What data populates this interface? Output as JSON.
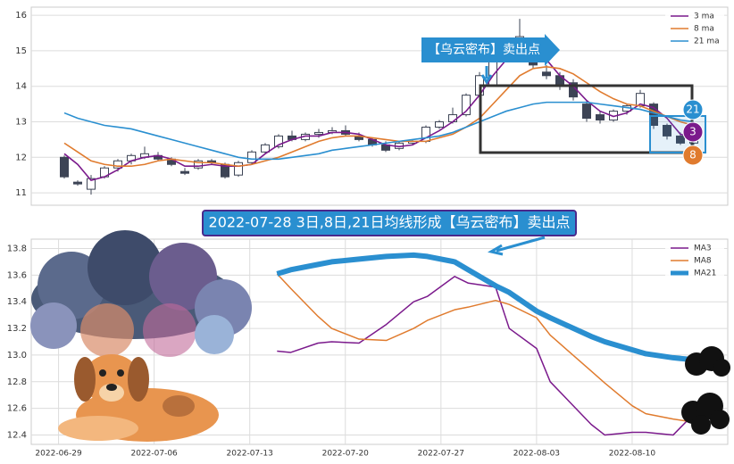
{
  "chart_data": [
    {
      "type": "candlestick",
      "ohlc": [
        [
          12.0,
          12.05,
          11.4,
          11.45
        ],
        [
          11.3,
          11.35,
          11.2,
          11.25
        ],
        [
          11.1,
          11.5,
          10.95,
          11.4
        ],
        [
          11.45,
          11.75,
          11.4,
          11.7
        ],
        [
          11.7,
          11.95,
          11.6,
          11.9
        ],
        [
          11.9,
          12.1,
          11.8,
          12.05
        ],
        [
          12.0,
          12.3,
          11.95,
          12.1
        ],
        [
          12.05,
          12.15,
          11.9,
          11.95
        ],
        [
          11.95,
          12.0,
          11.75,
          11.8
        ],
        [
          11.6,
          11.7,
          11.5,
          11.55
        ],
        [
          11.7,
          11.95,
          11.65,
          11.9
        ],
        [
          11.9,
          11.95,
          11.8,
          11.85
        ],
        [
          11.8,
          11.85,
          11.4,
          11.45
        ],
        [
          11.5,
          11.9,
          11.45,
          11.85
        ],
        [
          11.85,
          12.2,
          11.8,
          12.15
        ],
        [
          12.15,
          12.4,
          12.1,
          12.35
        ],
        [
          12.3,
          12.65,
          12.25,
          12.6
        ],
        [
          12.6,
          12.75,
          12.45,
          12.5
        ],
        [
          12.5,
          12.7,
          12.45,
          12.65
        ],
        [
          12.65,
          12.8,
          12.55,
          12.7
        ],
        [
          12.7,
          12.85,
          12.65,
          12.75
        ],
        [
          12.75,
          12.9,
          12.6,
          12.65
        ],
        [
          12.6,
          12.7,
          12.45,
          12.5
        ],
        [
          12.5,
          12.55,
          12.3,
          12.35
        ],
        [
          12.35,
          12.45,
          12.15,
          12.2
        ],
        [
          12.25,
          12.45,
          12.2,
          12.4
        ],
        [
          12.4,
          12.5,
          12.35,
          12.45
        ],
        [
          12.45,
          12.9,
          12.4,
          12.85
        ],
        [
          12.85,
          13.05,
          12.8,
          13.0
        ],
        [
          13.0,
          13.4,
          12.95,
          13.2
        ],
        [
          13.2,
          13.8,
          13.15,
          13.75
        ],
        [
          13.75,
          14.4,
          13.6,
          14.3
        ],
        [
          14.0,
          15.1,
          14.0,
          14.9
        ],
        [
          14.9,
          15.2,
          14.9,
          15.1
        ],
        [
          15.3,
          15.9,
          15.0,
          15.4
        ],
        [
          15.1,
          15.2,
          14.5,
          14.6
        ],
        [
          14.4,
          14.6,
          14.2,
          14.3
        ],
        [
          14.3,
          14.4,
          13.9,
          14.0
        ],
        [
          14.1,
          14.2,
          13.6,
          13.7
        ],
        [
          13.5,
          13.6,
          13.0,
          13.1
        ],
        [
          13.2,
          13.3,
          12.95,
          13.05
        ],
        [
          13.05,
          13.35,
          13.0,
          13.3
        ],
        [
          13.3,
          13.5,
          13.2,
          13.45
        ],
        [
          13.45,
          13.9,
          13.4,
          13.8
        ],
        [
          13.5,
          13.55,
          12.8,
          12.9
        ],
        [
          12.9,
          12.95,
          12.5,
          12.6
        ],
        [
          12.6,
          12.7,
          12.35,
          12.4
        ],
        [
          12.4,
          12.75,
          12.35,
          12.7
        ]
      ],
      "up_color": "#ffffff",
      "down_color": "#3d4455",
      "series": [
        {
          "name": "3 ma",
          "color": "#7b1a8c",
          "values": [
            12.1,
            11.8,
            11.35,
            11.45,
            11.65,
            11.9,
            12.0,
            12.05,
            11.95,
            11.75,
            11.75,
            11.8,
            11.75,
            11.75,
            11.8,
            12.1,
            12.35,
            12.5,
            12.6,
            12.6,
            12.7,
            12.7,
            12.65,
            12.5,
            12.35,
            12.3,
            12.35,
            12.55,
            12.75,
            13.0,
            13.3,
            13.75,
            14.3,
            14.75,
            15.1,
            15.05,
            14.75,
            14.3,
            14.0,
            13.6,
            13.3,
            13.15,
            13.25,
            13.5,
            13.4,
            13.1,
            12.65,
            12.55
          ]
        },
        {
          "name": "8 ma",
          "color": "#e07b2e",
          "values": [
            12.4,
            12.15,
            11.9,
            11.8,
            11.75,
            11.75,
            11.8,
            11.9,
            11.95,
            11.9,
            11.85,
            11.85,
            11.8,
            11.75,
            11.8,
            11.9,
            12.0,
            12.15,
            12.3,
            12.45,
            12.55,
            12.6,
            12.6,
            12.55,
            12.5,
            12.45,
            12.45,
            12.45,
            12.55,
            12.65,
            12.85,
            13.1,
            13.5,
            13.9,
            14.3,
            14.5,
            14.55,
            14.5,
            14.35,
            14.1,
            13.85,
            13.65,
            13.5,
            13.45,
            13.3,
            13.15,
            13.0,
            12.9
          ]
        },
        {
          "name": "21 ma",
          "color": "#2a8fd0",
          "values": [
            13.25,
            13.1,
            13.0,
            12.9,
            12.85,
            12.8,
            12.7,
            12.6,
            12.5,
            12.4,
            12.3,
            12.2,
            12.1,
            12.0,
            11.95,
            11.95,
            11.95,
            12.0,
            12.05,
            12.1,
            12.2,
            12.25,
            12.3,
            12.35,
            12.4,
            12.45,
            12.5,
            12.55,
            12.6,
            12.7,
            12.85,
            13.0,
            13.15,
            13.3,
            13.4,
            13.5,
            13.55,
            13.55,
            13.55,
            13.55,
            13.5,
            13.45,
            13.4,
            13.35,
            13.25,
            13.15,
            13.05,
            13.0
          ]
        }
      ],
      "ylim": [
        10.65,
        16.23
      ],
      "yticks": [
        11,
        12,
        13,
        14,
        15,
        16
      ],
      "grid": true,
      "legend": "upper right",
      "annotations": {
        "signal": "【乌云密布】卖出点",
        "badges": [
          "21",
          "3",
          "8"
        ]
      }
    },
    {
      "type": "line",
      "x": [
        "2022-07-15",
        "2022-07-16",
        "2022-07-18",
        "2022-07-19",
        "2022-07-21",
        "2022-07-23",
        "2022-07-25",
        "2022-07-26",
        "2022-07-28",
        "2022-07-29",
        "2022-07-31",
        "2022-08-01",
        "2022-08-03",
        "2022-08-04",
        "2022-08-07",
        "2022-08-08",
        "2022-08-10",
        "2022-08-11",
        "2022-08-13",
        "2022-08-15"
      ],
      "series": [
        {
          "name": "MA3",
          "color": "#7b1a8c",
          "width": 1.5,
          "values": [
            13.03,
            13.02,
            13.09,
            13.1,
            13.09,
            13.23,
            13.4,
            13.44,
            13.59,
            13.54,
            13.51,
            13.2,
            13.05,
            12.8,
            12.48,
            12.4,
            12.42,
            12.42,
            12.4,
            12.61
          ]
        },
        {
          "name": "MA8",
          "color": "#e07b2e",
          "width": 1.5,
          "values": [
            13.61,
            13.5,
            13.29,
            13.2,
            13.12,
            13.11,
            13.2,
            13.26,
            13.34,
            13.36,
            13.41,
            13.38,
            13.28,
            13.15,
            12.88,
            12.79,
            12.62,
            12.56,
            12.52,
            12.49
          ]
        },
        {
          "name": "MA21",
          "color": "#2a8fd0",
          "width": 6,
          "values": [
            13.61,
            13.64,
            13.68,
            13.7,
            13.72,
            13.74,
            13.75,
            13.74,
            13.7,
            13.64,
            13.52,
            13.47,
            13.33,
            13.28,
            13.14,
            13.1,
            13.04,
            13.01,
            12.98,
            12.96
          ]
        }
      ],
      "xlim": [
        "2022-06-27",
        "2022-08-17"
      ],
      "xticks": [
        "2022-06-29",
        "2022-07-06",
        "2022-07-13",
        "2022-07-20",
        "2022-07-27",
        "2022-08-03",
        "2022-08-10"
      ],
      "ylim": [
        12.33,
        13.87
      ],
      "yticks": [
        12.4,
        12.6,
        12.8,
        {
          "value": 13,
          "label": "13.0"
        },
        13.2,
        13.4,
        13.6,
        13.8
      ],
      "grid": true,
      "legend": "upper right",
      "annotations": {
        "banner": "2022-07-28 3日,8日,21日均线形成【乌云密布】卖出点"
      }
    }
  ]
}
